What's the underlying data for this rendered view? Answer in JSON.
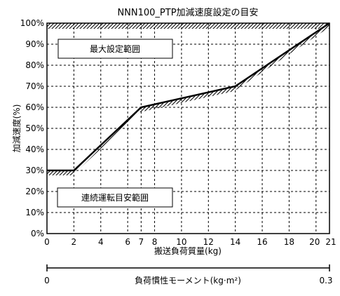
{
  "chart_data": {
    "type": "line",
    "title": "NNN100_PTP加減速度設定の目安",
    "xlabel": "搬送負荷質量(kg)",
    "ylabel": "加減速度(%)",
    "x_ticks": [
      0,
      2,
      4,
      6,
      7,
      8,
      10,
      12,
      14,
      16,
      18,
      20,
      21
    ],
    "x_tick_labels": [
      "0",
      "2",
      "4",
      "6",
      "7",
      "8",
      "10",
      "12",
      "14",
      "16",
      "18",
      "20",
      "21"
    ],
    "y_ticks": [
      0,
      10,
      20,
      30,
      40,
      50,
      60,
      70,
      80,
      90,
      100
    ],
    "y_tick_labels": [
      "0%",
      "10%",
      "20%",
      "30%",
      "40%",
      "50%",
      "60%",
      "70%",
      "80%",
      "90%",
      "100%"
    ],
    "xlim": [
      0,
      21
    ],
    "ylim": [
      0,
      100
    ],
    "grid": true,
    "series": [
      {
        "x": [
          0,
          2,
          7,
          14,
          21
        ],
        "y": [
          30,
          30,
          60,
          70,
          100
        ]
      }
    ],
    "regions": {
      "upper_label": "最大設定範囲",
      "lower_label": "連続運転目安範囲"
    },
    "secondary_axis": {
      "label": "負荷慣性モーメント(kg·m²)",
      "min_label": "0",
      "max_label": "0.3"
    }
  }
}
